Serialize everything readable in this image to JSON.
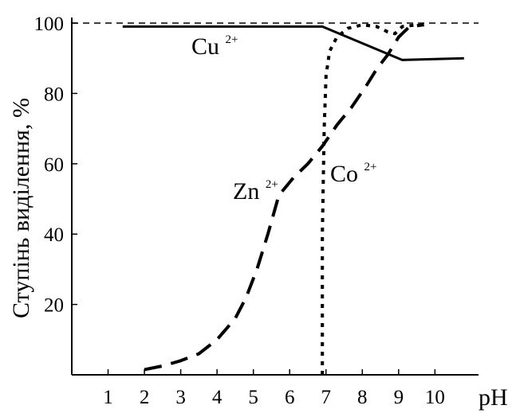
{
  "chart_data": {
    "type": "line",
    "title": "",
    "xlabel": "pH",
    "ylabel": "Ступінь виділення, %",
    "xlim": [
      0,
      11.2
    ],
    "ylim": [
      0,
      100
    ],
    "x_ticks": [
      1,
      2,
      3,
      4,
      5,
      6,
      7,
      8,
      9,
      10
    ],
    "y_ticks": [
      20,
      40,
      60,
      80,
      100
    ],
    "grid": false,
    "reference_line": {
      "y": 100,
      "style": "dashed"
    },
    "series": [
      {
        "label_base": "Cu",
        "label_charge": "2+",
        "style": "solid",
        "color": "#000000",
        "x": [
          1.4,
          3,
          5,
          6.9,
          9.1,
          10.8
        ],
        "y": [
          99,
          99,
          99,
          99,
          89.5,
          90
        ]
      },
      {
        "label_base": "Zn",
        "label_charge": "2+",
        "style": "dashed",
        "color": "#000000",
        "x": [
          2.0,
          2.5,
          3,
          3.5,
          4,
          4.5,
          4.8,
          5.1,
          5.4,
          5.7,
          6.1,
          6.5,
          6.9,
          7.3,
          7.7,
          8.1,
          8.4,
          8.7,
          9.0,
          9.3,
          9.7
        ],
        "y": [
          1.5,
          2.5,
          4,
          6,
          10,
          16,
          22,
          30,
          40,
          51,
          56,
          60,
          65,
          71,
          76,
          82,
          87,
          91,
          96,
          99,
          99.5
        ]
      },
      {
        "label_base": "Co",
        "label_charge": "2+",
        "style": "dotted",
        "color": "#000000",
        "x": [
          6.9,
          6.9,
          6.95,
          7.0,
          7.1,
          7.3,
          7.6,
          8.0,
          8.4,
          8.7,
          8.9,
          9.1,
          9.5
        ],
        "y": [
          0,
          40,
          70,
          85,
          92,
          96,
          98.5,
          99.5,
          99,
          97.5,
          97,
          99,
          99.5
        ]
      }
    ]
  }
}
